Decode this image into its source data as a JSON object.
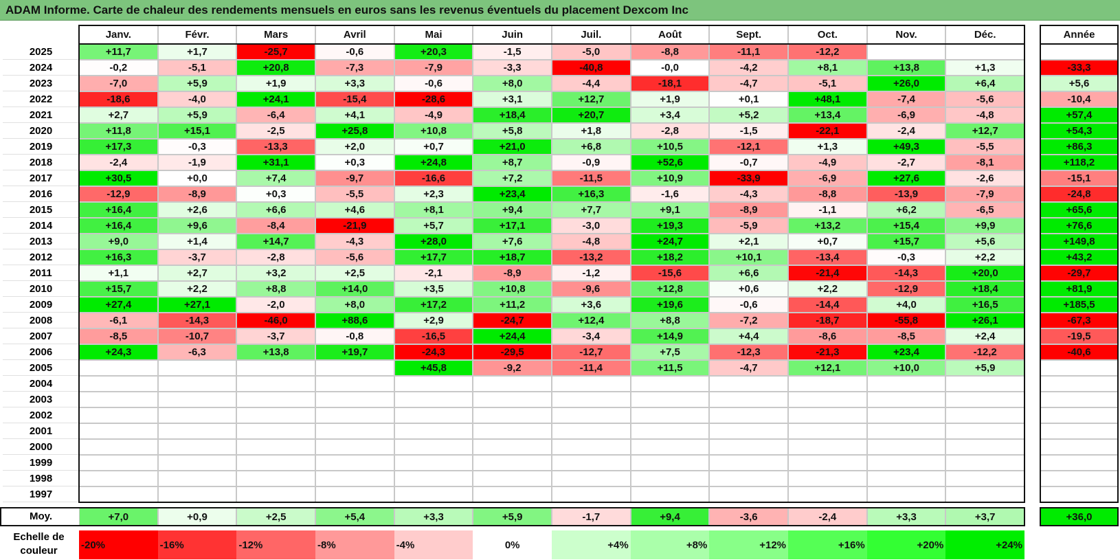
{
  "title": "ADAM Informe. Carte de chaleur des rendements mensuels en euros sans les revenus éventuels du placement Dexcom Inc",
  "chart_data": {
    "type": "heatmap",
    "title": "ADAM Informe. Carte de chaleur des rendements mensuels en euros sans les revenus éventuels du placement Dexcom Inc",
    "columns": [
      "Janv.",
      "Févr.",
      "Mars",
      "Avril",
      "Mai",
      "Juin",
      "Juil.",
      "Août",
      "Sept.",
      "Oct.",
      "Nov.",
      "Déc."
    ],
    "year_column_label": "Année",
    "rows": [
      {
        "year": "2025",
        "values": [
          "+11,7",
          "+1,7",
          "-25,7",
          "-0,6",
          "+20,3",
          "-1,5",
          "-5,0",
          "-8,8",
          "-11,1",
          "-12,2",
          "",
          ""
        ],
        "annual": ""
      },
      {
        "year": "2024",
        "values": [
          "-0,2",
          "-5,1",
          "+20,8",
          "-7,3",
          "-7,9",
          "-3,3",
          "-40,8",
          "-0,0",
          "-4,2",
          "+8,1",
          "+13,8",
          "+1,3"
        ],
        "annual": "-33,3"
      },
      {
        "year": "2023",
        "values": [
          "-7,0",
          "+5,9",
          "+1,9",
          "+3,3",
          "-0,6",
          "+8,0",
          "-4,4",
          "-18,1",
          "-4,7",
          "-5,1",
          "+26,0",
          "+6,4"
        ],
        "annual": "+5,6"
      },
      {
        "year": "2022",
        "values": [
          "-18,6",
          "-4,0",
          "+24,1",
          "-15,4",
          "-28,6",
          "+3,1",
          "+12,7",
          "+1,9",
          "+0,1",
          "+48,1",
          "-7,4",
          "-5,6"
        ],
        "annual": "-10,4"
      },
      {
        "year": "2021",
        "values": [
          "+2,7",
          "+5,9",
          "-6,4",
          "+4,1",
          "-4,9",
          "+18,4",
          "+20,7",
          "+3,4",
          "+5,2",
          "+13,4",
          "-6,9",
          "-4,8"
        ],
        "annual": "+57,4"
      },
      {
        "year": "2020",
        "values": [
          "+11,8",
          "+15,1",
          "-2,5",
          "+25,8",
          "+10,8",
          "+5,8",
          "+1,8",
          "-2,8",
          "-1,5",
          "-22,1",
          "-2,4",
          "+12,7"
        ],
        "annual": "+54,3"
      },
      {
        "year": "2019",
        "values": [
          "+17,3",
          "-0,3",
          "-13,3",
          "+2,0",
          "+0,7",
          "+21,0",
          "+6,8",
          "+10,5",
          "-12,1",
          "+1,3",
          "+49,3",
          "-5,5"
        ],
        "annual": "+86,3"
      },
      {
        "year": "2018",
        "values": [
          "-2,4",
          "-1,9",
          "+31,1",
          "+0,3",
          "+24,8",
          "+8,7",
          "-0,9",
          "+52,6",
          "-0,7",
          "-4,9",
          "-2,7",
          "-8,1"
        ],
        "annual": "+118,2"
      },
      {
        "year": "2017",
        "values": [
          "+30,5",
          "+0,0",
          "+7,4",
          "-9,7",
          "-16,6",
          "+7,2",
          "-11,5",
          "+10,9",
          "-33,9",
          "-6,9",
          "+27,6",
          "-2,6"
        ],
        "annual": "-15,1"
      },
      {
        "year": "2016",
        "values": [
          "-12,9",
          "-8,9",
          "+0,3",
          "-5,5",
          "+2,3",
          "+23,4",
          "+16,3",
          "-1,6",
          "-4,3",
          "-8,8",
          "-13,9",
          "-7,9"
        ],
        "annual": "-24,8"
      },
      {
        "year": "2015",
        "values": [
          "+16,4",
          "+2,6",
          "+6,6",
          "+4,6",
          "+8,1",
          "+9,4",
          "+7,7",
          "+9,1",
          "-8,9",
          "-1,1",
          "+6,2",
          "-6,5"
        ],
        "annual": "+65,6"
      },
      {
        "year": "2014",
        "values": [
          "+16,4",
          "+9,6",
          "-8,4",
          "-21,9",
          "+5,7",
          "+17,1",
          "-3,0",
          "+19,3",
          "-5,9",
          "+13,2",
          "+15,4",
          "+9,9"
        ],
        "annual": "+76,6"
      },
      {
        "year": "2013",
        "values": [
          "+9,0",
          "+1,4",
          "+14,7",
          "-4,3",
          "+28,0",
          "+7,6",
          "-4,8",
          "+24,7",
          "+2,1",
          "+0,7",
          "+15,7",
          "+5,6"
        ],
        "annual": "+149,8"
      },
      {
        "year": "2012",
        "values": [
          "+16,3",
          "-3,7",
          "-2,8",
          "-5,6",
          "+17,7",
          "+18,7",
          "-13,2",
          "+18,2",
          "+10,1",
          "-13,4",
          "-0,3",
          "+2,2"
        ],
        "annual": "+43,2"
      },
      {
        "year": "2011",
        "values": [
          "+1,1",
          "+2,7",
          "+3,2",
          "+2,5",
          "-2,1",
          "-8,9",
          "-1,2",
          "-15,6",
          "+6,6",
          "-21,4",
          "-14,3",
          "+20,0"
        ],
        "annual": "-29,7"
      },
      {
        "year": "2010",
        "values": [
          "+15,7",
          "+2,2",
          "+8,8",
          "+14,0",
          "+3,5",
          "+10,8",
          "-9,6",
          "+12,8",
          "+0,6",
          "+2,2",
          "-12,9",
          "+18,4"
        ],
        "annual": "+81,9"
      },
      {
        "year": "2009",
        "values": [
          "+27,4",
          "+27,1",
          "-2,0",
          "+8,0",
          "+17,2",
          "+11,2",
          "+3,6",
          "+19,6",
          "-0,6",
          "-14,4",
          "+4,0",
          "+16,5"
        ],
        "annual": "+185,5"
      },
      {
        "year": "2008",
        "values": [
          "-6,1",
          "-14,3",
          "-46,0",
          "+88,6",
          "+2,9",
          "-24,7",
          "+12,4",
          "+8,8",
          "-7,2",
          "-18,7",
          "-55,8",
          "+26,1"
        ],
        "annual": "-67,3"
      },
      {
        "year": "2007",
        "values": [
          "-8,5",
          "-10,7",
          "-3,7",
          "-0,8",
          "-16,5",
          "+24,4",
          "-3,4",
          "+14,9",
          "+4,4",
          "-8,6",
          "-8,5",
          "+2,4"
        ],
        "annual": "-19,5"
      },
      {
        "year": "2006",
        "values": [
          "+24,3",
          "-6,3",
          "+13,8",
          "+19,7",
          "-24,3",
          "-29,5",
          "-12,7",
          "+7,5",
          "-12,3",
          "-21,3",
          "+23,4",
          "-12,2"
        ],
        "annual": "-40,6"
      },
      {
        "year": "2005",
        "values": [
          "",
          "",
          "",
          "",
          "+45,8",
          "-9,2",
          "-11,4",
          "+11,5",
          "-4,7",
          "+12,1",
          "+10,0",
          "+5,9"
        ],
        "annual": ""
      },
      {
        "year": "2004",
        "values": [
          "",
          "",
          "",
          "",
          "",
          "",
          "",
          "",
          "",
          "",
          "",
          ""
        ],
        "annual": ""
      },
      {
        "year": "2003",
        "values": [
          "",
          "",
          "",
          "",
          "",
          "",
          "",
          "",
          "",
          "",
          "",
          ""
        ],
        "annual": ""
      },
      {
        "year": "2002",
        "values": [
          "",
          "",
          "",
          "",
          "",
          "",
          "",
          "",
          "",
          "",
          "",
          ""
        ],
        "annual": ""
      },
      {
        "year": "2001",
        "values": [
          "",
          "",
          "",
          "",
          "",
          "",
          "",
          "",
          "",
          "",
          "",
          ""
        ],
        "annual": ""
      },
      {
        "year": "2000",
        "values": [
          "",
          "",
          "",
          "",
          "",
          "",
          "",
          "",
          "",
          "",
          "",
          ""
        ],
        "annual": ""
      },
      {
        "year": "1999",
        "values": [
          "",
          "",
          "",
          "",
          "",
          "",
          "",
          "",
          "",
          "",
          "",
          ""
        ],
        "annual": ""
      },
      {
        "year": "1998",
        "values": [
          "",
          "",
          "",
          "",
          "",
          "",
          "",
          "",
          "",
          "",
          "",
          ""
        ],
        "annual": ""
      },
      {
        "year": "1997",
        "values": [
          "",
          "",
          "",
          "",
          "",
          "",
          "",
          "",
          "",
          "",
          "",
          ""
        ],
        "annual": ""
      }
    ],
    "average": {
      "label": "Moy.",
      "values": [
        "+7,0",
        "+0,9",
        "+2,5",
        "+5,4",
        "+3,3",
        "+5,9",
        "-1,7",
        "+9,4",
        "-3,6",
        "-2,4",
        "+3,3",
        "+3,7"
      ],
      "annual": "+36,0"
    },
    "legend": {
      "label": "Echelle de couleur",
      "steps": [
        "-20%",
        "-16%",
        "-12%",
        "-8%",
        "-4%",
        "0%",
        "+4%",
        "+8%",
        "+12%",
        "+16%",
        "+20%",
        "+24%"
      ],
      "colors": [
        "#ff0000",
        "#ff3333",
        "#ff6666",
        "#ff9999",
        "#ffcccc",
        "#ffffff",
        "#ccffcc",
        "#aaffaa",
        "#88ff88",
        "#55ff55",
        "#33ff33",
        "#00ee00"
      ]
    }
  }
}
